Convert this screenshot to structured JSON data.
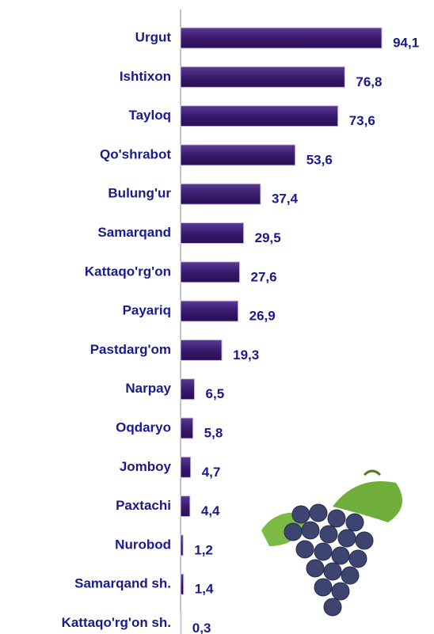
{
  "chart_data": {
    "type": "bar",
    "orientation": "horizontal",
    "categories": [
      "Urgut",
      "Ishtixon",
      "Tayloq",
      "Qo'shrabot",
      "Bulung'ur",
      "Samarqand",
      "Kattaqo'rg'on",
      "Payariq",
      "Pastdarg'om",
      "Narpay",
      "Oqdaryo",
      "Jomboy",
      "Paxtachi",
      "Nurobod",
      "Samarqand sh.",
      "Kattaqo'rg'on sh."
    ],
    "values": [
      94.1,
      76.8,
      73.6,
      53.6,
      37.4,
      29.5,
      27.6,
      26.9,
      19.3,
      6.5,
      5.8,
      4.7,
      4.4,
      1.2,
      1.4,
      0.3
    ],
    "value_labels": [
      "94,1",
      "76,8",
      "73,6",
      "53,6",
      "37,4",
      "29,5",
      "27,6",
      "26,9",
      "19,3",
      "6,5",
      "5,8",
      "4,7",
      "4,4",
      "1,2",
      "1,4",
      "0,3"
    ],
    "color": "#3a1a6e"
  }
}
